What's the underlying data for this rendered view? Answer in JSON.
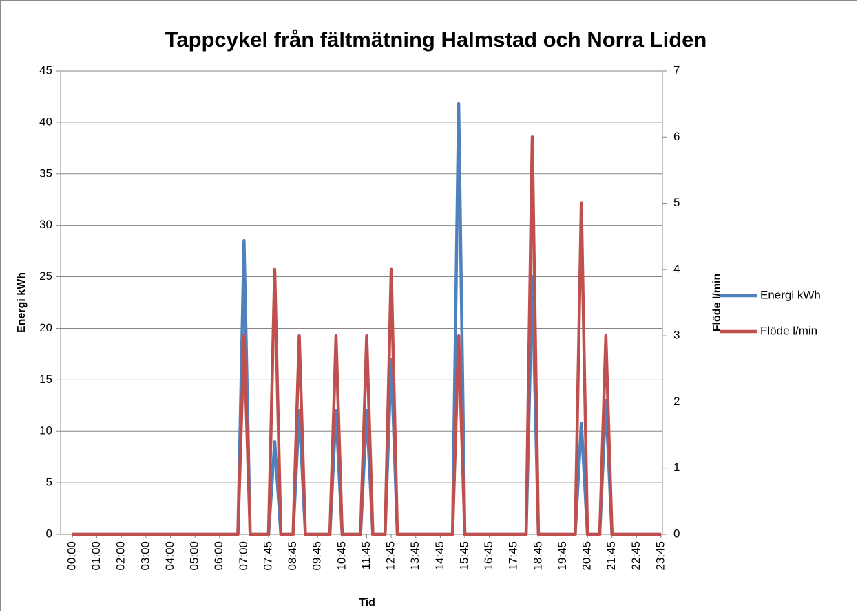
{
  "chart_data": {
    "type": "line",
    "title": "Tappcykel från fältmätning Halmstad och Norra Liden",
    "xlabel": "Tid",
    "ylabel": "Energi kWh",
    "y2label": "Flöde l/min",
    "categories": [
      "00:00",
      null,
      null,
      null,
      "01:00",
      null,
      null,
      null,
      "02:00",
      null,
      null,
      null,
      "03:00",
      null,
      null,
      null,
      "04:00",
      null,
      null,
      null,
      "05:00",
      null,
      null,
      null,
      "06:00",
      null,
      null,
      null,
      "07:00",
      null,
      null,
      null,
      "07:45",
      null,
      null,
      null,
      "08:45",
      null,
      null,
      null,
      "09:45",
      null,
      null,
      null,
      "10:45",
      null,
      null,
      null,
      "11:45",
      null,
      null,
      null,
      "12:45",
      null,
      null,
      null,
      "13:45",
      null,
      null,
      null,
      "14:45",
      null,
      null,
      null,
      "15:45",
      null,
      null,
      null,
      "16:45",
      null,
      null,
      null,
      "17:45",
      null,
      null,
      null,
      "18:45",
      null,
      null,
      null,
      "19:45",
      null,
      null,
      null,
      "20:45",
      null,
      null,
      null,
      "21:45",
      null,
      null,
      null,
      "22:45",
      null,
      null,
      null,
      "23:45"
    ],
    "series": [
      {
        "name": "Energi kWh",
        "color": "#4f81bd",
        "values": [
          0,
          0,
          0,
          0,
          0,
          0,
          0,
          0,
          0,
          0,
          0,
          0,
          0,
          0,
          0,
          0,
          0,
          0,
          0,
          0,
          0,
          0,
          0,
          0,
          0,
          0,
          0,
          0,
          28.5,
          0,
          0,
          0,
          0,
          9,
          0,
          0,
          0,
          12,
          0,
          0,
          0,
          0,
          0,
          12,
          0,
          0,
          0,
          0,
          12,
          0,
          0,
          0,
          17,
          0,
          0,
          0,
          0,
          0,
          0,
          0,
          0,
          0,
          0,
          41.8,
          0,
          0,
          0,
          0,
          0,
          0,
          0,
          0,
          0,
          0,
          0,
          25,
          0,
          0,
          0,
          0,
          0,
          0,
          0,
          10.8,
          0,
          0,
          0,
          13,
          0,
          0,
          0,
          0,
          0,
          0,
          0,
          0,
          0
        ]
      },
      {
        "name": "Flöde l/min",
        "color": "#c0504d",
        "axis": "y2",
        "values": [
          0,
          0,
          0,
          0,
          0,
          0,
          0,
          0,
          0,
          0,
          0,
          0,
          0,
          0,
          0,
          0,
          0,
          0,
          0,
          0,
          0,
          0,
          0,
          0,
          0,
          0,
          0,
          0,
          3,
          0,
          0,
          0,
          0,
          4,
          0,
          0,
          0,
          3,
          0,
          0,
          0,
          0,
          0,
          3,
          0,
          0,
          0,
          0,
          3,
          0,
          0,
          0,
          4,
          0,
          0,
          0,
          0,
          0,
          0,
          0,
          0,
          0,
          0,
          3,
          0,
          0,
          0,
          0,
          0,
          0,
          0,
          0,
          0,
          0,
          0,
          6,
          0,
          0,
          0,
          0,
          0,
          0,
          0,
          5,
          0,
          0,
          0,
          3,
          0,
          0,
          0,
          0,
          0,
          0,
          0,
          0,
          0
        ]
      }
    ],
    "ylim": [
      0,
      45
    ],
    "yticks": [
      0,
      5,
      10,
      15,
      20,
      25,
      30,
      35,
      40,
      45
    ],
    "y2lim": [
      0,
      7
    ],
    "y2ticks": [
      0,
      1,
      2,
      3,
      4,
      5,
      6,
      7
    ],
    "grid": true,
    "legend": "right"
  }
}
